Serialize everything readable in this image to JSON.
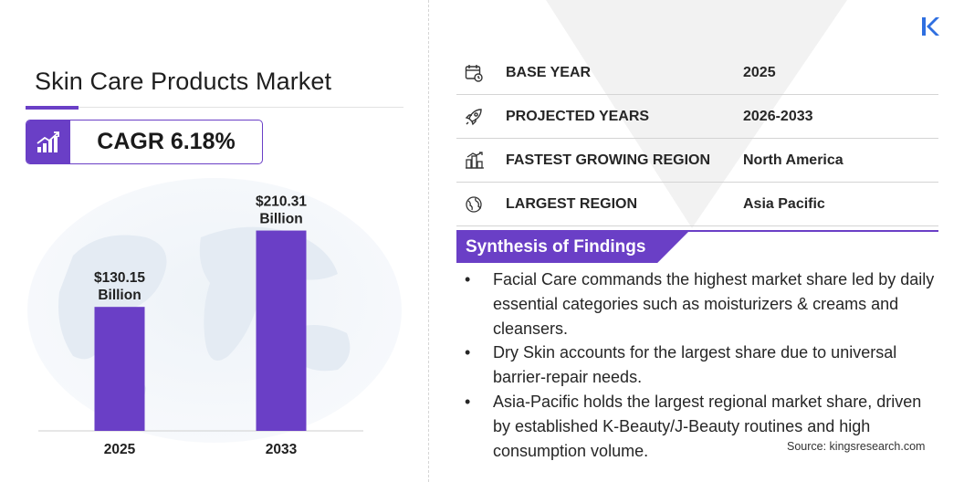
{
  "title": "Skin Care Products Market",
  "cagr": "CAGR 6.18%",
  "colors": {
    "accent": "#6a3fc6",
    "bar": "#6a3fc6",
    "logo": "#2f6fe0"
  },
  "chart_data": {
    "type": "bar",
    "categories": [
      "2025",
      "2033"
    ],
    "values": [
      130.15,
      210.31
    ],
    "value_labels": [
      [
        "$130.15",
        "Billion"
      ],
      [
        "$210.31",
        "Billion"
      ]
    ],
    "title": "",
    "xlabel": "",
    "ylabel": "",
    "ylim": [
      0,
      230
    ],
    "grid": false
  },
  "info_rows": [
    {
      "icon": "calendar-icon",
      "label": "BASE YEAR",
      "value": "2025"
    },
    {
      "icon": "rocket-icon",
      "label": "PROJECTED YEARS",
      "value": "2026-2033"
    },
    {
      "icon": "city-growth-icon",
      "label": "FASTEST GROWING REGION",
      "value": "North America"
    },
    {
      "icon": "globe-icon",
      "label": "LARGEST REGION",
      "value": "Asia Pacific"
    }
  ],
  "synthesis": {
    "heading": "Synthesis of Findings",
    "bullet": "•",
    "items": [
      "Facial Care commands the highest market share led by daily essential categories such as moisturizers & creams and cleansers.",
      "Dry Skin accounts for the largest share due to universal barrier-repair needs.",
      "Asia-Pacific holds the largest regional market share, driven by established K-Beauty/J-Beauty routines and high consumption volume."
    ]
  },
  "source": "Source:  kingsresearch.com"
}
